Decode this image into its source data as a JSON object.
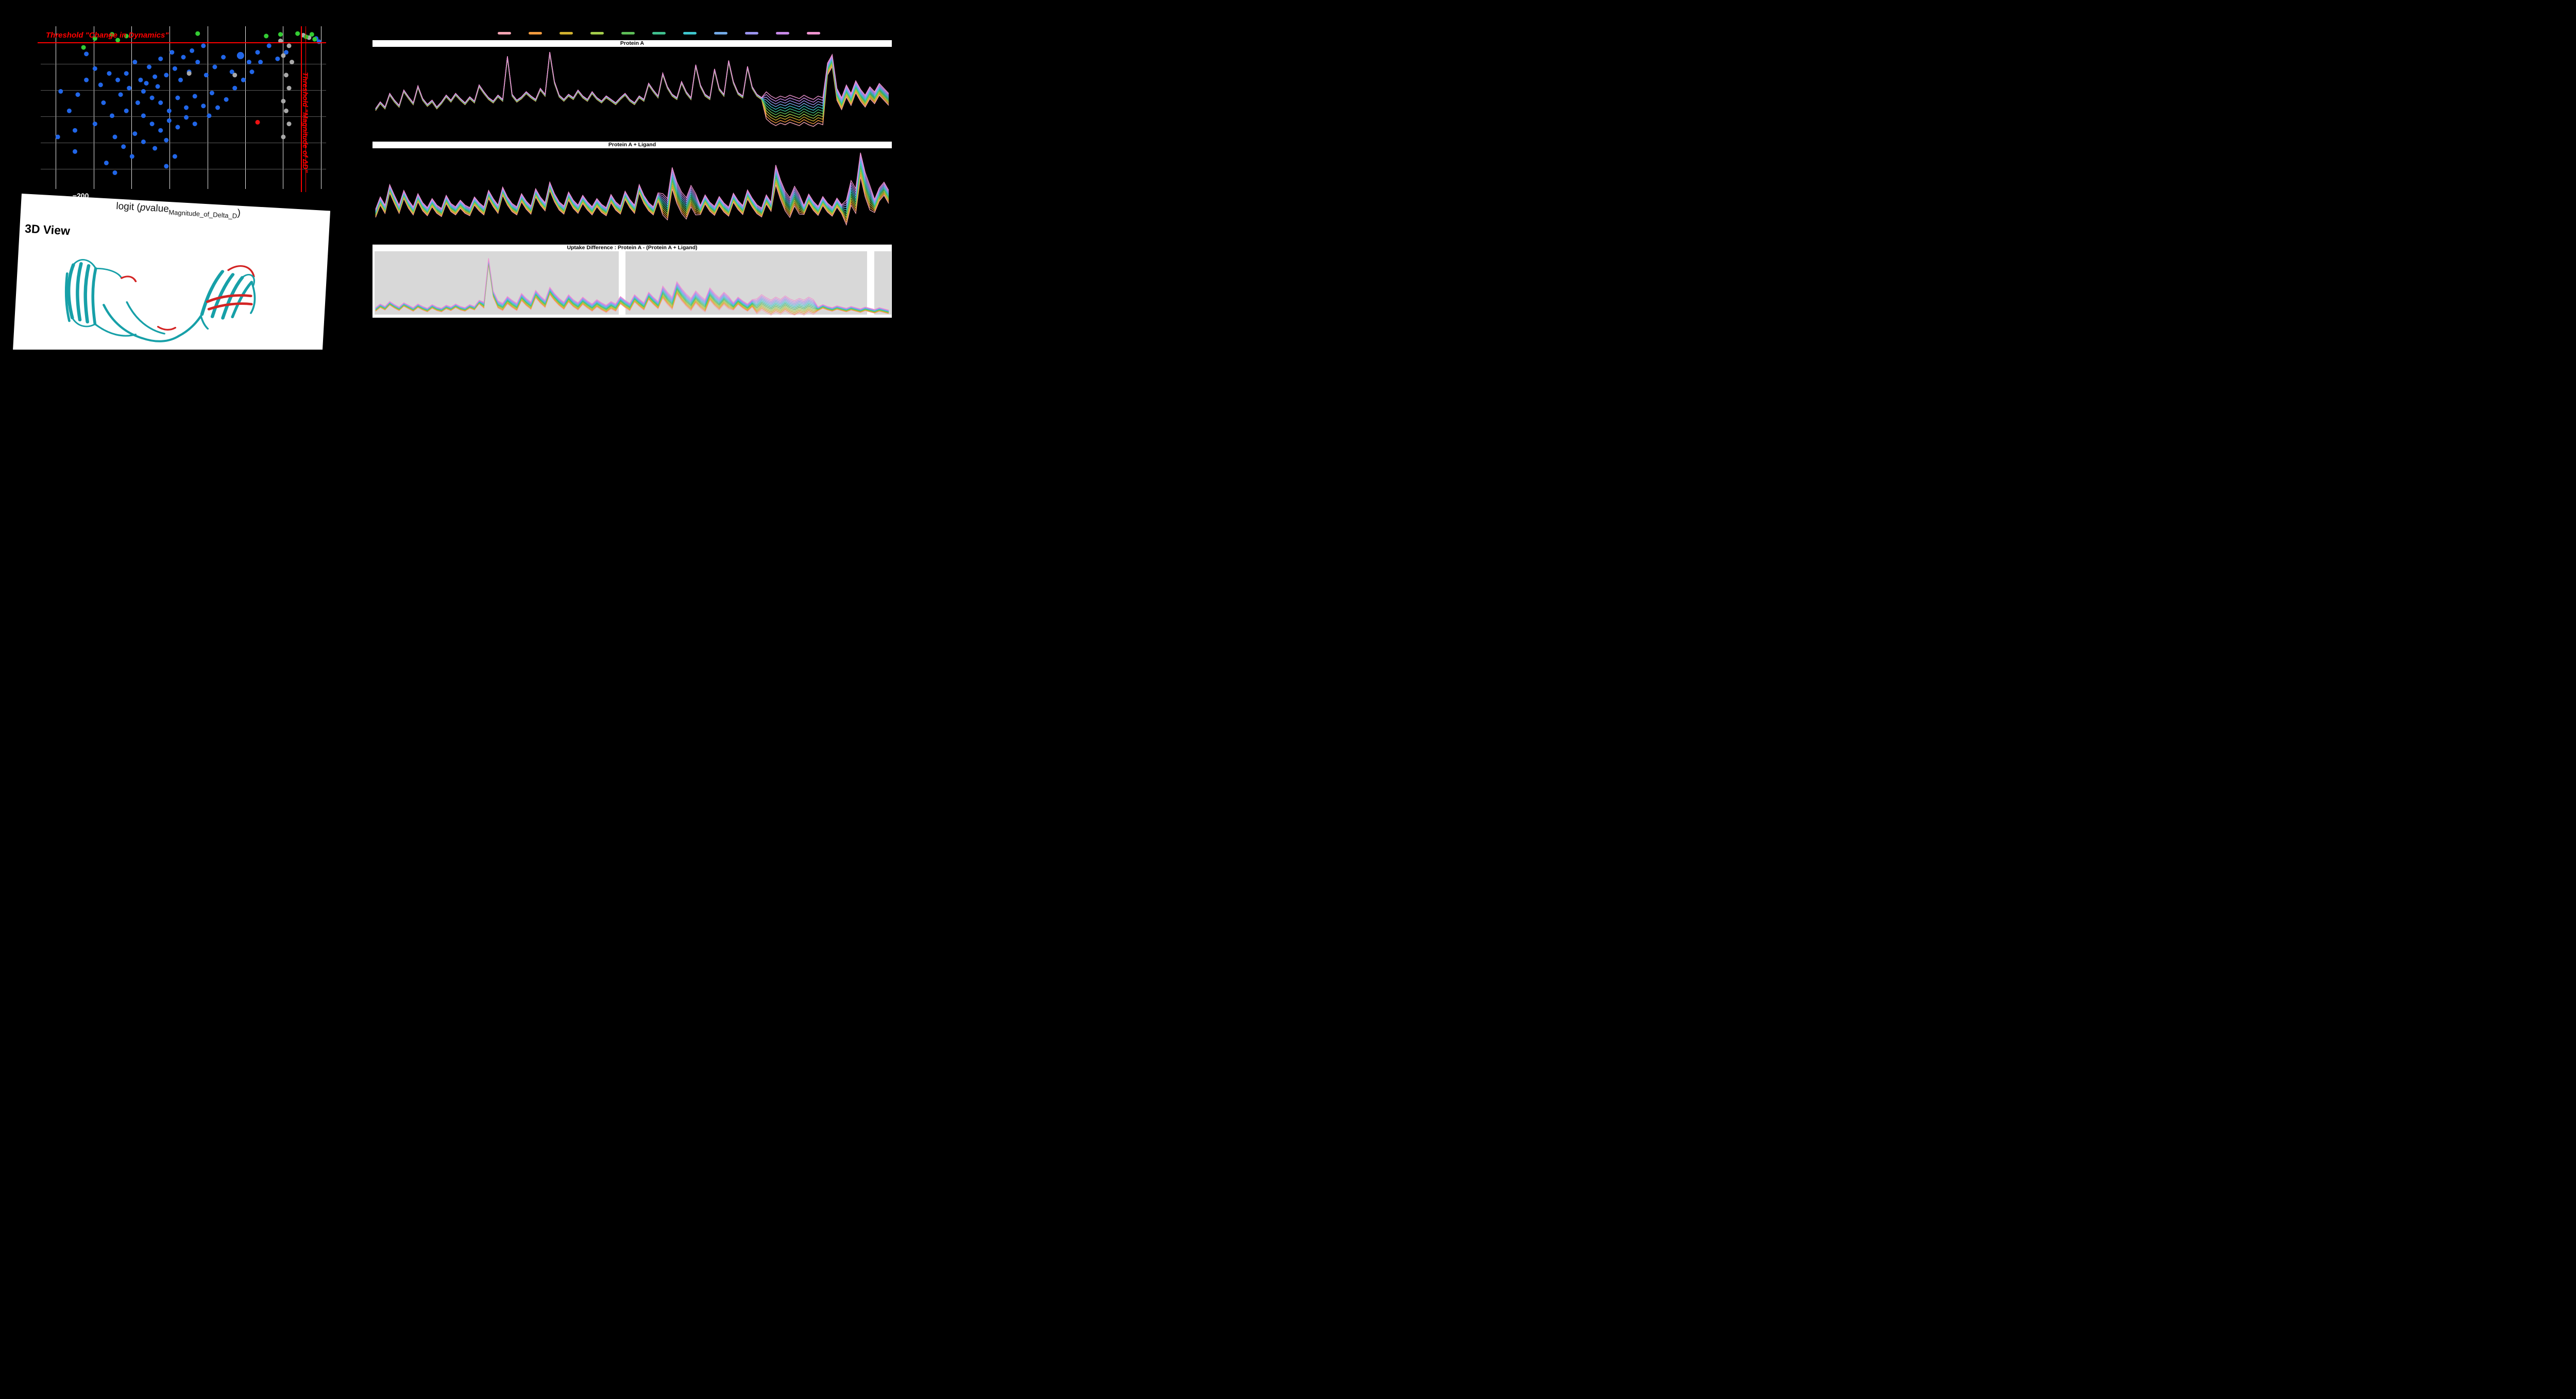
{
  "app": {
    "background": "#000000"
  },
  "volcano": {
    "threshold_top_label": "Threshold \"Change in Dynamics\"",
    "threshold_right_label": "Threshold \"Magnitude of ΔD\"",
    "axis_label": {
      "prefix": "logit (",
      "p": "p",
      "value": "value",
      "subscript": "Magnitude_of_Delta_D",
      "suffix": ")"
    },
    "ticks": [
      {
        "label": "−200",
        "f": 0.14
      }
    ],
    "colors": {
      "blue": "#2166e8",
      "green": "#33cc33",
      "gray": "#a9a9a9",
      "red": "#ee1111",
      "threshold": "#ff0000"
    }
  },
  "view3d": {
    "title": "3D View",
    "ribbon_main_color": "#17a0a8",
    "ribbon_highlight_color": "#d32424"
  },
  "panels": [
    {
      "title": "Protein A"
    },
    {
      "title": "Protein A + Ligand"
    },
    {
      "title": "Uptake Difference : Protein A - (Protein A + Ligand)"
    }
  ],
  "legend": {
    "colors": [
      "#f4a3b2",
      "#f09a3e",
      "#d0b12f",
      "#a3cc4a",
      "#5dbd57",
      "#3fc08e",
      "#3ec6cd",
      "#72a9e6",
      "#9a93ee",
      "#c788e8",
      "#ef93cf"
    ]
  },
  "chart_data": [
    {
      "type": "scatter",
      "name": "volcano",
      "x_axis_label": "logit (pvalue_Magnitude_of_Delta_D)",
      "x_ticks": [
        "−200"
      ],
      "grid": {
        "vertical": [
          0.053,
          0.186,
          0.318,
          0.451,
          0.584,
          0.716,
          0.849,
          0.982
        ],
        "horizontal": [
          0.232,
          0.393,
          0.554,
          0.714,
          0.875
        ]
      },
      "thresholds": {
        "horizontal_y": 0.1,
        "vertical_x": [
          0.912,
          0.927
        ]
      },
      "series": [
        {
          "name": "blue-points",
          "color": "#2166e8",
          "points": [
            [
              0.16,
              0.17
            ],
            [
              0.19,
              0.26
            ],
            [
              0.1,
              0.52
            ],
            [
              0.12,
              0.64
            ],
            [
              0.07,
              0.4
            ],
            [
              0.3,
              0.29
            ],
            [
              0.33,
              0.22
            ],
            [
              0.35,
              0.33
            ],
            [
              0.38,
              0.25
            ],
            [
              0.4,
              0.31
            ],
            [
              0.42,
              0.2
            ],
            [
              0.28,
              0.42
            ],
            [
              0.31,
              0.38
            ],
            [
              0.36,
              0.4
            ],
            [
              0.39,
              0.44
            ],
            [
              0.41,
              0.37
            ],
            [
              0.44,
              0.3
            ],
            [
              0.47,
              0.26
            ],
            [
              0.49,
              0.33
            ],
            [
              0.52,
              0.28
            ],
            [
              0.55,
              0.22
            ],
            [
              0.58,
              0.3
            ],
            [
              0.61,
              0.25
            ],
            [
              0.64,
              0.19
            ],
            [
              0.67,
              0.28
            ],
            [
              0.7,
              0.18,
              7
            ],
            [
              0.73,
              0.22
            ],
            [
              0.42,
              0.47
            ],
            [
              0.45,
              0.52
            ],
            [
              0.48,
              0.44
            ],
            [
              0.51,
              0.5
            ],
            [
              0.54,
              0.43
            ],
            [
              0.57,
              0.49
            ],
            [
              0.6,
              0.41
            ],
            [
              0.36,
              0.55
            ],
            [
              0.39,
              0.6
            ],
            [
              0.42,
              0.64
            ],
            [
              0.45,
              0.58
            ],
            [
              0.48,
              0.62
            ],
            [
              0.51,
              0.56
            ],
            [
              0.54,
              0.6
            ],
            [
              0.33,
              0.66
            ],
            [
              0.36,
              0.71
            ],
            [
              0.4,
              0.75
            ],
            [
              0.44,
              0.7
            ],
            [
              0.25,
              0.55
            ],
            [
              0.22,
              0.47
            ],
            [
              0.19,
              0.6
            ],
            [
              0.26,
              0.68
            ],
            [
              0.29,
              0.74
            ],
            [
              0.32,
              0.8
            ],
            [
              0.23,
              0.84
            ],
            [
              0.26,
              0.9
            ],
            [
              0.12,
              0.77
            ],
            [
              0.06,
              0.68
            ],
            [
              0.59,
              0.55
            ],
            [
              0.62,
              0.5
            ],
            [
              0.65,
              0.45
            ],
            [
              0.68,
              0.38
            ],
            [
              0.71,
              0.33
            ],
            [
              0.74,
              0.28
            ],
            [
              0.77,
              0.22
            ],
            [
              0.8,
              0.12
            ],
            [
              0.83,
              0.2
            ],
            [
              0.86,
              0.16
            ],
            [
              0.76,
              0.16
            ],
            [
              0.46,
              0.16
            ],
            [
              0.5,
              0.19
            ],
            [
              0.53,
              0.15
            ],
            [
              0.57,
              0.12
            ],
            [
              0.44,
              0.86
            ],
            [
              0.47,
              0.8
            ],
            [
              0.34,
              0.47
            ],
            [
              0.37,
              0.35
            ],
            [
              0.3,
              0.52
            ],
            [
              0.27,
              0.33
            ],
            [
              0.24,
              0.29
            ],
            [
              0.21,
              0.36
            ],
            [
              0.16,
              0.33
            ],
            [
              0.13,
              0.42
            ],
            [
              0.965,
              0.075
            ],
            [
              0.975,
              0.095
            ]
          ]
        },
        {
          "name": "gray-points",
          "color": "#a9a9a9",
          "points": [
            [
              0.84,
              0.09
            ],
            [
              0.87,
              0.12
            ],
            [
              0.85,
              0.18
            ],
            [
              0.88,
              0.22
            ],
            [
              0.86,
              0.3
            ],
            [
              0.87,
              0.38
            ],
            [
              0.85,
              0.46
            ],
            [
              0.86,
              0.52
            ],
            [
              0.87,
              0.6
            ],
            [
              0.85,
              0.68
            ],
            [
              0.92,
              0.055
            ],
            [
              0.94,
              0.07
            ],
            [
              0.68,
              0.3
            ],
            [
              0.52,
              0.29
            ]
          ]
        },
        {
          "name": "green-points",
          "color": "#33cc33",
          "points": [
            [
              0.15,
              0.13
            ],
            [
              0.19,
              0.075
            ],
            [
              0.25,
              0.05
            ],
            [
              0.27,
              0.085
            ],
            [
              0.3,
              0.06
            ],
            [
              0.55,
              0.045
            ],
            [
              0.79,
              0.06
            ],
            [
              0.84,
              0.05
            ],
            [
              0.9,
              0.045
            ],
            [
              0.93,
              0.065
            ],
            [
              0.95,
              0.05
            ],
            [
              0.96,
              0.08
            ]
          ]
        },
        {
          "name": "red-points",
          "color": "#ee1111",
          "points": [
            [
              0.76,
              0.59
            ]
          ]
        }
      ]
    },
    {
      "type": "line",
      "title": "Protein A",
      "stroke_width": 1.4,
      "series": [
        {
          "color": "#f4a3b2",
          "c": -1
        },
        {
          "color": "#f09a3e",
          "c": -0.8
        },
        {
          "color": "#d0b12f",
          "c": -0.6
        },
        {
          "color": "#a3cc4a",
          "c": -0.4
        },
        {
          "color": "#5dbd57",
          "c": -0.2
        },
        {
          "color": "#3fc08e",
          "c": 0
        },
        {
          "color": "#3ec6cd",
          "c": 0.2
        },
        {
          "color": "#72a9e6",
          "c": 0.4
        },
        {
          "color": "#9a93ee",
          "c": 0.6
        },
        {
          "color": "#c788e8",
          "c": 0.8
        },
        {
          "color": "#ef93cf",
          "c": 1
        }
      ],
      "base": [
        0.3,
        0.38,
        0.32,
        0.48,
        0.4,
        0.34,
        0.52,
        0.44,
        0.37,
        0.57,
        0.42,
        0.35,
        0.4,
        0.32,
        0.38,
        0.46,
        0.4,
        0.48,
        0.42,
        0.37,
        0.44,
        0.39,
        0.58,
        0.5,
        0.43,
        0.39,
        0.46,
        0.41,
        0.92,
        0.47,
        0.4,
        0.44,
        0.5,
        0.45,
        0.41,
        0.54,
        0.47,
        0.97,
        0.62,
        0.46,
        0.41,
        0.47,
        0.43,
        0.52,
        0.45,
        0.41,
        0.5,
        0.43,
        0.39,
        0.45,
        0.41,
        0.37,
        0.43,
        0.48,
        0.41,
        0.37,
        0.45,
        0.41,
        0.6,
        0.52,
        0.45,
        0.72,
        0.56,
        0.47,
        0.43,
        0.62,
        0.5,
        0.43,
        0.82,
        0.58,
        0.47,
        0.43,
        0.77,
        0.54,
        0.47,
        0.87,
        0.62,
        0.49,
        0.45,
        0.8,
        0.56,
        0.47,
        0.43,
        0.35,
        0.3,
        0.27,
        0.3,
        0.28,
        0.31,
        0.29,
        0.27,
        0.31,
        0.28,
        0.26,
        0.3,
        0.28,
        0.78,
        0.88,
        0.48,
        0.37,
        0.52,
        0.42,
        0.57,
        0.47,
        0.4,
        0.5,
        0.44,
        0.54,
        0.48,
        0.42
      ],
      "spread": [
        {
          "from": 0,
          "to": 82,
          "v": 0.012
        },
        {
          "from": 83,
          "to": 95,
          "v": 0.16
        },
        {
          "from": 96,
          "to": 109,
          "v": 0.07
        }
      ]
    },
    {
      "type": "line",
      "title": "Protein A + Ligand",
      "stroke_width": 1.3,
      "series": [
        {
          "color": "#f4a3b2",
          "c": -1
        },
        {
          "color": "#f09a3e",
          "c": -0.8
        },
        {
          "color": "#d0b12f",
          "c": -0.6
        },
        {
          "color": "#a3cc4a",
          "c": -0.4
        },
        {
          "color": "#5dbd57",
          "c": -0.2
        },
        {
          "color": "#3fc08e",
          "c": 0
        },
        {
          "color": "#3ec6cd",
          "c": 0.2
        },
        {
          "color": "#72a9e6",
          "c": 0.4
        },
        {
          "color": "#9a93ee",
          "c": 0.6
        },
        {
          "color": "#c788e8",
          "c": 0.8
        },
        {
          "color": "#ef93cf",
          "c": 1
        }
      ],
      "base": [
        0.25,
        0.4,
        0.3,
        0.55,
        0.42,
        0.3,
        0.48,
        0.36,
        0.28,
        0.44,
        0.33,
        0.27,
        0.38,
        0.3,
        0.26,
        0.42,
        0.32,
        0.28,
        0.36,
        0.3,
        0.27,
        0.4,
        0.33,
        0.28,
        0.48,
        0.38,
        0.3,
        0.52,
        0.4,
        0.32,
        0.28,
        0.44,
        0.35,
        0.29,
        0.5,
        0.4,
        0.33,
        0.58,
        0.44,
        0.34,
        0.29,
        0.46,
        0.36,
        0.3,
        0.42,
        0.34,
        0.28,
        0.38,
        0.31,
        0.27,
        0.43,
        0.34,
        0.29,
        0.47,
        0.37,
        0.3,
        0.55,
        0.42,
        0.33,
        0.28,
        0.45,
        0.36,
        0.3,
        0.68,
        0.5,
        0.38,
        0.31,
        0.46,
        0.36,
        0.29,
        0.42,
        0.33,
        0.28,
        0.4,
        0.32,
        0.27,
        0.44,
        0.35,
        0.29,
        0.48,
        0.38,
        0.3,
        0.26,
        0.42,
        0.33,
        0.72,
        0.54,
        0.4,
        0.32,
        0.46,
        0.36,
        0.29,
        0.43,
        0.34,
        0.28,
        0.4,
        0.32,
        0.27,
        0.38,
        0.3,
        0.26,
        0.5,
        0.4,
        0.85,
        0.6,
        0.44,
        0.34,
        0.48,
        0.55,
        0.45
      ],
      "spread": [
        {
          "from": 0,
          "to": 60,
          "v": 0.05
        },
        {
          "from": 61,
          "to": 68,
          "v": 0.13
        },
        {
          "from": 69,
          "to": 84,
          "v": 0.055
        },
        {
          "from": 85,
          "to": 90,
          "v": 0.12
        },
        {
          "from": 91,
          "to": 99,
          "v": 0.055
        },
        {
          "from": 100,
          "to": 105,
          "v": 0.15
        },
        {
          "from": 106,
          "to": 109,
          "v": 0.08
        }
      ]
    },
    {
      "type": "line",
      "title": "Uptake Difference : Protein A - (Protein A + Ligand)",
      "stroke_width": 1.2,
      "background": "#ffffff",
      "region_color": "#d8d8d8",
      "gray_regions": [
        [
          0.004,
          0.474
        ],
        [
          0.487,
          0.952
        ],
        [
          0.966,
          0.999
        ]
      ],
      "series": [
        {
          "color": "#f4a3b2",
          "c": -1
        },
        {
          "color": "#f09a3e",
          "c": -0.8
        },
        {
          "color": "#d0b12f",
          "c": -0.6
        },
        {
          "color": "#a3cc4a",
          "c": -0.4
        },
        {
          "color": "#5dbd57",
          "c": -0.2
        },
        {
          "color": "#3fc08e",
          "c": 0
        },
        {
          "color": "#3ec6cd",
          "c": 0.2
        },
        {
          "color": "#72a9e6",
          "c": 0.4
        },
        {
          "color": "#9a93ee",
          "c": 0.6
        },
        {
          "color": "#c788e8",
          "c": 0.8
        },
        {
          "color": "#ef93cf",
          "c": 1
        }
      ],
      "base": [
        0.1,
        0.16,
        0.12,
        0.2,
        0.15,
        0.11,
        0.18,
        0.14,
        0.1,
        0.16,
        0.12,
        0.09,
        0.15,
        0.11,
        0.09,
        0.14,
        0.11,
        0.16,
        0.12,
        0.1,
        0.15,
        0.12,
        0.22,
        0.17,
        0.88,
        0.35,
        0.18,
        0.14,
        0.25,
        0.19,
        0.14,
        0.3,
        0.22,
        0.16,
        0.35,
        0.26,
        0.19,
        0.4,
        0.3,
        0.22,
        0.16,
        0.28,
        0.2,
        0.15,
        0.24,
        0.18,
        0.13,
        0.2,
        0.15,
        0.11,
        0.17,
        0.13,
        0.25,
        0.19,
        0.14,
        0.28,
        0.21,
        0.15,
        0.32,
        0.24,
        0.17,
        0.38,
        0.28,
        0.2,
        0.45,
        0.34,
        0.25,
        0.18,
        0.3,
        0.22,
        0.16,
        0.35,
        0.26,
        0.19,
        0.28,
        0.21,
        0.15,
        0.24,
        0.18,
        0.13,
        0.2,
        0.15,
        0.22,
        0.17,
        0.13,
        0.18,
        0.14,
        0.2,
        0.15,
        0.12,
        0.16,
        0.13,
        0.18,
        0.14,
        0.11,
        0.15,
        0.12,
        0.1,
        0.13,
        0.11,
        0.09,
        0.12,
        0.1,
        0.08,
        0.11,
        0.09,
        0.07,
        0.1,
        0.08,
        0.06
      ],
      "spread": [
        {
          "from": 0,
          "to": 22,
          "v": 0.03
        },
        {
          "from": 23,
          "to": 25,
          "v": 0.05
        },
        {
          "from": 26,
          "to": 60,
          "v": 0.06
        },
        {
          "from": 61,
          "to": 75,
          "v": 0.1
        },
        {
          "from": 76,
          "to": 80,
          "v": 0.06
        },
        {
          "from": 81,
          "to": 93,
          "v": 0.12
        },
        {
          "from": 94,
          "to": 109,
          "v": 0.03
        }
      ]
    }
  ]
}
